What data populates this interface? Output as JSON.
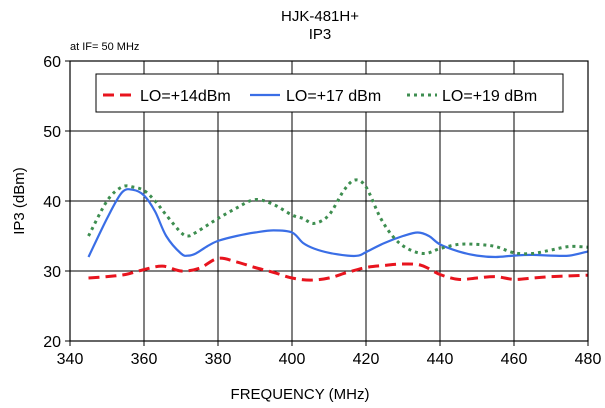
{
  "chart_data": {
    "type": "line",
    "title": "HJK-481H+",
    "subtitle": "IP3",
    "annotation": "at IF= 50 MHz",
    "xlabel": "FREQUENCY (MHz)",
    "ylabel": "IP3 (dBm)",
    "xlim": [
      340,
      480
    ],
    "ylim": [
      20,
      60
    ],
    "x_ticks": [
      340,
      360,
      380,
      400,
      420,
      440,
      460,
      480
    ],
    "y_ticks": [
      20,
      30,
      40,
      50,
      60
    ],
    "grid": true,
    "legend_position": "top",
    "series": [
      {
        "name": "LO=+14dBm",
        "color": "#e8141e",
        "style": "dashed",
        "x": [
          345,
          350,
          355,
          360,
          365,
          370,
          375,
          380,
          385,
          390,
          395,
          400,
          405,
          410,
          415,
          420,
          425,
          430,
          435,
          440,
          445,
          450,
          455,
          460,
          465,
          470,
          475,
          480
        ],
        "y": [
          29.0,
          29.2,
          29.5,
          30.2,
          30.7,
          30.0,
          30.4,
          31.8,
          31.3,
          30.5,
          29.8,
          29.0,
          28.7,
          29.0,
          29.8,
          30.5,
          30.8,
          31.0,
          30.8,
          29.5,
          28.8,
          29.0,
          29.2,
          28.8,
          29.0,
          29.2,
          29.3,
          29.4
        ]
      },
      {
        "name": "LO=+17 dBm",
        "color": "#3a6ee6",
        "style": "solid",
        "x": [
          345,
          350,
          354,
          357,
          360,
          363,
          366,
          370,
          372,
          374,
          377,
          380,
          385,
          390,
          395,
          400,
          403,
          406,
          410,
          415,
          418,
          420,
          425,
          430,
          434,
          437,
          440,
          445,
          450,
          455,
          460,
          465,
          470,
          475,
          480
        ],
        "y": [
          32.0,
          37.5,
          41.2,
          41.6,
          40.8,
          38.5,
          35.0,
          32.5,
          32.2,
          32.5,
          33.5,
          34.3,
          35.0,
          35.5,
          35.8,
          35.5,
          34.0,
          33.2,
          32.6,
          32.2,
          32.2,
          32.7,
          34.0,
          35.0,
          35.5,
          35.0,
          33.8,
          32.8,
          32.2,
          32.0,
          32.2,
          32.3,
          32.2,
          32.2,
          32.8
        ]
      },
      {
        "name": "LO=+19 dBm",
        "color": "#3e8e50",
        "style": "dotted",
        "x": [
          345,
          350,
          354,
          357,
          360,
          363,
          366,
          370,
          372,
          374,
          377,
          380,
          385,
          390,
          395,
          400,
          403,
          406,
          410,
          414,
          417,
          420,
          424,
          428,
          432,
          436,
          440,
          445,
          450,
          455,
          460,
          465,
          470,
          475,
          480
        ],
        "y": [
          35.0,
          40.0,
          42.0,
          42.0,
          41.5,
          40.0,
          38.0,
          35.5,
          35.0,
          35.5,
          36.5,
          37.5,
          39.0,
          40.2,
          39.5,
          38.0,
          37.5,
          36.8,
          38.0,
          41.5,
          43.0,
          42.0,
          37.5,
          34.5,
          33.0,
          32.5,
          33.2,
          33.8,
          33.8,
          33.5,
          32.6,
          32.5,
          33.0,
          33.5,
          33.4
        ]
      }
    ]
  }
}
